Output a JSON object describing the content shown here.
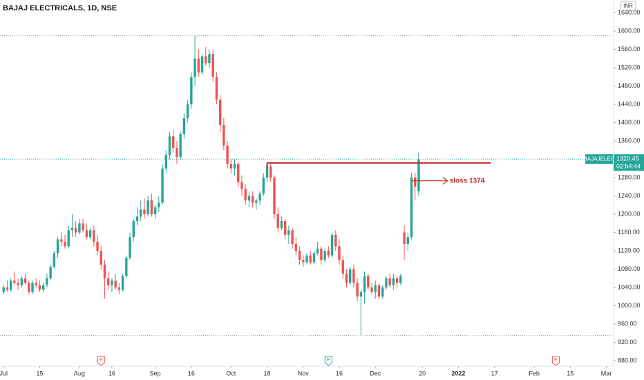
{
  "chart_data": {
    "type": "candlestick",
    "title": "BAJAJ ELECTRICALS, 1D, NSE",
    "currency": "INR",
    "symbol": "BAJAJELEC",
    "current_price": 1320.45,
    "current_price_label": "1320.45",
    "countdown": "02:54:44",
    "up_color": "#26a69a",
    "down_color": "#ef5350",
    "ylim": [
      868,
      1668
    ],
    "xlim": [
      -1,
      169
    ],
    "yticks": [
      {
        "value": 880,
        "label": "880.00"
      },
      {
        "value": 920,
        "label": "920.00"
      },
      {
        "value": 960,
        "label": "960.00"
      },
      {
        "value": 1000,
        "label": "1000.00"
      },
      {
        "value": 1040,
        "label": "1040.00"
      },
      {
        "value": 1080,
        "label": "1080.00"
      },
      {
        "value": 1120,
        "label": "1120.00"
      },
      {
        "value": 1160,
        "label": "1160.00"
      },
      {
        "value": 1200,
        "label": "1200.00"
      },
      {
        "value": 1240,
        "label": "1240.00"
      },
      {
        "value": 1280,
        "label": "1280.00"
      },
      {
        "value": 1360,
        "label": "1360.00"
      },
      {
        "value": 1400,
        "label": "1400.00"
      },
      {
        "value": 1440,
        "label": "1440.00"
      },
      {
        "value": 1480,
        "label": "1480.00"
      },
      {
        "value": 1520,
        "label": "1520.00"
      },
      {
        "value": 1560,
        "label": "1560.00"
      },
      {
        "value": 1600,
        "label": "1600.00"
      },
      {
        "value": 1640,
        "label": "1640.00"
      }
    ],
    "xticks": [
      {
        "value": 0,
        "label": "Jul"
      },
      {
        "value": 10,
        "label": "15"
      },
      {
        "value": 21,
        "label": "Aug"
      },
      {
        "value": 30,
        "label": "16"
      },
      {
        "value": 42,
        "label": "Sep"
      },
      {
        "value": 52,
        "label": "16"
      },
      {
        "value": 63,
        "label": "Oct"
      },
      {
        "value": 73,
        "label": "18"
      },
      {
        "value": 83,
        "label": "Nov"
      },
      {
        "value": 93,
        "label": "16"
      },
      {
        "value": 103,
        "label": "Dec"
      },
      {
        "value": 116,
        "label": "20"
      },
      {
        "value": 126,
        "label": "2022"
      },
      {
        "value": 136,
        "label": "17"
      },
      {
        "value": 147,
        "label": "Feb"
      },
      {
        "value": 157,
        "label": "15"
      },
      {
        "value": 167,
        "label": "Mar"
      }
    ],
    "events": [
      {
        "x": 27,
        "label": "E",
        "color": "#ef5350"
      },
      {
        "x": 90,
        "label": "E",
        "color": "#26a69a"
      },
      {
        "x": 153,
        "label": "E",
        "color": "#ef5350"
      }
    ],
    "level_line": {
      "value": 1312,
      "from": 73,
      "to": 135,
      "color": "#c0282d"
    },
    "arrow": {
      "value": 1273,
      "from": 113,
      "to": 123,
      "text": "sloss 1374",
      "color": "#c0282d"
    },
    "candles": [
      [
        1030,
        1045,
        1025,
        1040
      ],
      [
        1040,
        1055,
        1030,
        1035
      ],
      [
        1035,
        1060,
        1030,
        1055
      ],
      [
        1055,
        1075,
        1045,
        1050
      ],
      [
        1050,
        1060,
        1035,
        1045
      ],
      [
        1045,
        1065,
        1040,
        1060
      ],
      [
        1060,
        1070,
        1045,
        1050
      ],
      [
        1050,
        1055,
        1025,
        1030
      ],
      [
        1030,
        1055,
        1025,
        1050
      ],
      [
        1050,
        1060,
        1040,
        1045
      ],
      [
        1045,
        1055,
        1030,
        1035
      ],
      [
        1035,
        1050,
        1030,
        1045
      ],
      [
        1045,
        1070,
        1040,
        1060
      ],
      [
        1060,
        1090,
        1055,
        1085
      ],
      [
        1085,
        1120,
        1080,
        1115
      ],
      [
        1115,
        1150,
        1105,
        1145
      ],
      [
        1145,
        1160,
        1130,
        1140
      ],
      [
        1140,
        1155,
        1125,
        1130
      ],
      [
        1130,
        1175,
        1125,
        1165
      ],
      [
        1165,
        1200,
        1150,
        1170
      ],
      [
        1170,
        1185,
        1150,
        1160
      ],
      [
        1160,
        1190,
        1155,
        1180
      ],
      [
        1180,
        1190,
        1160,
        1165
      ],
      [
        1165,
        1180,
        1145,
        1150
      ],
      [
        1150,
        1170,
        1145,
        1165
      ],
      [
        1165,
        1175,
        1130,
        1140
      ],
      [
        1140,
        1155,
        1110,
        1120
      ],
      [
        1120,
        1130,
        1080,
        1090
      ],
      [
        1090,
        1100,
        1015,
        1060
      ],
      [
        1060,
        1075,
        1035,
        1045
      ],
      [
        1045,
        1060,
        1030,
        1055
      ],
      [
        1055,
        1070,
        1035,
        1040
      ],
      [
        1040,
        1050,
        1025,
        1035
      ],
      [
        1035,
        1070,
        1030,
        1065
      ],
      [
        1065,
        1110,
        1060,
        1105
      ],
      [
        1105,
        1160,
        1100,
        1150
      ],
      [
        1150,
        1190,
        1140,
        1185
      ],
      [
        1185,
        1215,
        1175,
        1195
      ],
      [
        1195,
        1230,
        1185,
        1210
      ],
      [
        1210,
        1235,
        1190,
        1200
      ],
      [
        1200,
        1240,
        1195,
        1230
      ],
      [
        1230,
        1245,
        1195,
        1200
      ],
      [
        1200,
        1220,
        1190,
        1215
      ],
      [
        1215,
        1240,
        1205,
        1225
      ],
      [
        1225,
        1310,
        1220,
        1300
      ],
      [
        1300,
        1340,
        1290,
        1330
      ],
      [
        1330,
        1380,
        1320,
        1370
      ],
      [
        1370,
        1385,
        1335,
        1345
      ],
      [
        1345,
        1360,
        1310,
        1325
      ],
      [
        1325,
        1380,
        1320,
        1375
      ],
      [
        1375,
        1420,
        1365,
        1410
      ],
      [
        1410,
        1450,
        1400,
        1440
      ],
      [
        1440,
        1510,
        1430,
        1500
      ],
      [
        1500,
        1590,
        1480,
        1540
      ],
      [
        1540,
        1560,
        1500,
        1510
      ],
      [
        1510,
        1550,
        1505,
        1545
      ],
      [
        1545,
        1565,
        1525,
        1530
      ],
      [
        1530,
        1560,
        1520,
        1550
      ],
      [
        1550,
        1560,
        1490,
        1500
      ],
      [
        1500,
        1510,
        1440,
        1450
      ],
      [
        1450,
        1460,
        1380,
        1395
      ],
      [
        1395,
        1410,
        1340,
        1350
      ],
      [
        1350,
        1360,
        1300,
        1310
      ],
      [
        1310,
        1320,
        1290,
        1300
      ],
      [
        1300,
        1320,
        1285,
        1310
      ],
      [
        1310,
        1315,
        1260,
        1270
      ],
      [
        1270,
        1285,
        1240,
        1255
      ],
      [
        1255,
        1265,
        1220,
        1230
      ],
      [
        1230,
        1250,
        1215,
        1240
      ],
      [
        1240,
        1250,
        1215,
        1225
      ],
      [
        1225,
        1235,
        1210,
        1230
      ],
      [
        1230,
        1250,
        1220,
        1245
      ],
      [
        1245,
        1290,
        1240,
        1280
      ],
      [
        1280,
        1315,
        1270,
        1305
      ],
      [
        1305,
        1310,
        1270,
        1280
      ],
      [
        1280,
        1285,
        1190,
        1200
      ],
      [
        1200,
        1215,
        1160,
        1170
      ],
      [
        1170,
        1195,
        1165,
        1185
      ],
      [
        1185,
        1190,
        1145,
        1155
      ],
      [
        1155,
        1175,
        1135,
        1165
      ],
      [
        1165,
        1170,
        1125,
        1135
      ],
      [
        1135,
        1150,
        1110,
        1120
      ],
      [
        1120,
        1130,
        1090,
        1100
      ],
      [
        1100,
        1110,
        1085,
        1095
      ],
      [
        1095,
        1115,
        1090,
        1110
      ],
      [
        1110,
        1120,
        1090,
        1095
      ],
      [
        1095,
        1120,
        1090,
        1115
      ],
      [
        1115,
        1140,
        1110,
        1125
      ],
      [
        1125,
        1130,
        1090,
        1100
      ],
      [
        1100,
        1125,
        1095,
        1120
      ],
      [
        1120,
        1130,
        1105,
        1110
      ],
      [
        1110,
        1160,
        1105,
        1155
      ],
      [
        1155,
        1165,
        1120,
        1130
      ],
      [
        1130,
        1145,
        1090,
        1100
      ],
      [
        1100,
        1110,
        1060,
        1070
      ],
      [
        1070,
        1080,
        1040,
        1050
      ],
      [
        1050,
        1085,
        1045,
        1080
      ],
      [
        1080,
        1090,
        1040,
        1050
      ],
      [
        1050,
        1060,
        1010,
        1020
      ],
      [
        1020,
        1035,
        935,
        1030
      ],
      [
        1030,
        1075,
        1005,
        1065
      ],
      [
        1065,
        1070,
        1035,
        1040
      ],
      [
        1040,
        1050,
        1025,
        1030
      ],
      [
        1030,
        1055,
        1015,
        1045
      ],
      [
        1045,
        1050,
        1015,
        1020
      ],
      [
        1020,
        1045,
        1015,
        1040
      ],
      [
        1040,
        1065,
        1035,
        1060
      ],
      [
        1060,
        1070,
        1040,
        1045
      ],
      [
        1045,
        1070,
        1035,
        1060
      ],
      [
        1060,
        1065,
        1040,
        1050
      ],
      [
        1050,
        1070,
        1045,
        1065
      ],
      [
        1160,
        1175,
        1100,
        1135
      ],
      [
        1135,
        1160,
        1120,
        1150
      ],
      [
        1150,
        1290,
        1145,
        1280
      ],
      [
        1280,
        1290,
        1230,
        1260
      ],
      [
        1250,
        1335,
        1240,
        1320
      ]
    ]
  }
}
